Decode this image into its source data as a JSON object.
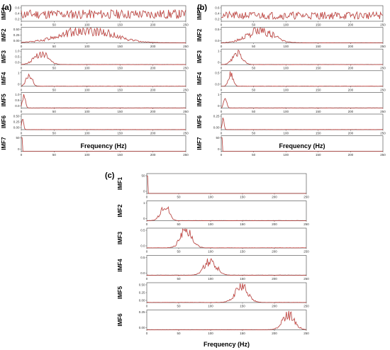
{
  "xlabel": "Frequency (Hz)",
  "colors": {
    "line": "#e3342f",
    "edge": "#262626",
    "axis": "#444444"
  },
  "chart_data": [
    {
      "panel": "(a)",
      "type": "line",
      "xlabel": "Frequency (Hz)",
      "xlim": [
        0,
        250
      ],
      "xticks": [
        "0",
        "50",
        "100",
        "150",
        "200",
        "250"
      ],
      "grid": false,
      "series": [
        {
          "name": "IMF1",
          "yticks": [
            "0.6",
            "0.4",
            "0.2"
          ],
          "ylim": [
            0,
            0.7
          ],
          "shape": "broad",
          "center": 150,
          "width": 200,
          "peak": 0.55,
          "noise": 0.5,
          "seed": 11
        },
        {
          "name": "IMF2",
          "yticks": [
            "0.50",
            "0.25",
            "0.00"
          ],
          "ylim": [
            0,
            0.6
          ],
          "shape": "band",
          "center": 100,
          "width": 55,
          "peak": 0.52,
          "noise": 0.45,
          "seed": 12
        },
        {
          "name": "IMF3",
          "yticks": [
            "1.0",
            "0.5",
            "0.0"
          ],
          "ylim": [
            0,
            1.2
          ],
          "shape": "band",
          "center": 30,
          "width": 14,
          "peak": 0.95,
          "noise": 0.4,
          "seed": 13
        },
        {
          "name": "IMF4",
          "yticks": [
            "1",
            "0"
          ],
          "ylim": [
            0,
            1.4
          ],
          "shape": "band",
          "center": 12,
          "width": 6,
          "peak": 1.1,
          "noise": 0.35,
          "seed": 14
        },
        {
          "name": "IMF5",
          "yticks": [
            "1.0",
            "0.5",
            "0.0"
          ],
          "ylim": [
            0,
            1.2
          ],
          "shape": "band",
          "center": 4,
          "width": 3,
          "peak": 1.0,
          "noise": 0.2,
          "seed": 15
        },
        {
          "name": "IMF6",
          "yticks": [
            "0.50",
            "0.25",
            "0.00"
          ],
          "ylim": [
            0,
            0.6
          ],
          "shape": "band",
          "center": 2,
          "width": 2,
          "peak": 0.5,
          "noise": 0.15,
          "seed": 16
        },
        {
          "name": "IMF7",
          "yticks": [
            "50",
            "0"
          ],
          "ylim": [
            0,
            60
          ],
          "shape": "spike",
          "center": 0,
          "width": 1,
          "peak": 55,
          "noise": 0,
          "seed": 17
        }
      ]
    },
    {
      "panel": "(b)",
      "type": "line",
      "xlabel": "Frequency (Hz)",
      "xlim": [
        0,
        250
      ],
      "xticks": [
        "0",
        "50",
        "100",
        "150",
        "200",
        "250"
      ],
      "grid": false,
      "series": [
        {
          "name": "IMF1",
          "yticks": [
            "0.6",
            "0.4",
            "0.2"
          ],
          "ylim": [
            0,
            0.7
          ],
          "shape": "broad",
          "center": 150,
          "width": 200,
          "peak": 0.45,
          "noise": 0.45,
          "seed": 21
        },
        {
          "name": "IMF2",
          "yticks": [
            "0.5",
            "0.0"
          ],
          "ylim": [
            0,
            0.7
          ],
          "shape": "band",
          "center": 60,
          "width": 28,
          "peak": 0.6,
          "noise": 0.45,
          "seed": 22
        },
        {
          "name": "IMF3",
          "yticks": [
            "1",
            "0"
          ],
          "ylim": [
            0,
            1.3
          ],
          "shape": "band",
          "center": 25,
          "width": 10,
          "peak": 1.0,
          "noise": 0.35,
          "seed": 23
        },
        {
          "name": "IMF4",
          "yticks": [
            "0.5",
            "0.0"
          ],
          "ylim": [
            0,
            0.7
          ],
          "shape": "band",
          "center": 15,
          "width": 5,
          "peak": 0.6,
          "noise": 0.35,
          "seed": 24
        },
        {
          "name": "IMF5",
          "yticks": [
            "1",
            "0"
          ],
          "ylim": [
            0,
            1.3
          ],
          "shape": "band",
          "center": 6,
          "width": 3,
          "peak": 1.0,
          "noise": 0.2,
          "seed": 25
        },
        {
          "name": "IMF6",
          "yticks": [
            "0.25",
            "0.00"
          ],
          "ylim": [
            0,
            0.4
          ],
          "shape": "band",
          "center": 3,
          "width": 2,
          "peak": 0.32,
          "noise": 0.15,
          "seed": 26
        },
        {
          "name": "IMF7",
          "yticks": [
            "50",
            "0"
          ],
          "ylim": [
            0,
            60
          ],
          "shape": "spike",
          "center": 0,
          "width": 1,
          "peak": 55,
          "noise": 0,
          "seed": 27
        }
      ]
    },
    {
      "panel": "(c)",
      "type": "line",
      "xlabel": "Frequency (Hz)",
      "xlim": [
        0,
        250
      ],
      "xticks": [
        "0",
        "50",
        "100",
        "150",
        "200",
        "250"
      ],
      "grid": false,
      "series": [
        {
          "name": "IMF1",
          "yticks": [
            "50",
            "0"
          ],
          "ylim": [
            0,
            60
          ],
          "shape": "spike",
          "center": 0,
          "width": 1,
          "peak": 55,
          "noise": 0,
          "seed": 31
        },
        {
          "name": "IMF2",
          "yticks": [
            "1",
            "0"
          ],
          "ylim": [
            0,
            1.2
          ],
          "shape": "band",
          "center": 28,
          "width": 9,
          "peak": 1.0,
          "noise": 0.35,
          "seed": 32
        },
        {
          "name": "IMF3",
          "yticks": [
            "0.5",
            "0.0"
          ],
          "ylim": [
            0,
            0.7
          ],
          "shape": "band",
          "center": 62,
          "width": 13,
          "peak": 0.6,
          "noise": 0.4,
          "seed": 33
        },
        {
          "name": "IMF4",
          "yticks": [
            "0.5",
            "0.0"
          ],
          "ylim": [
            0,
            0.75
          ],
          "shape": "band",
          "center": 100,
          "width": 13,
          "peak": 0.6,
          "noise": 0.4,
          "seed": 34
        },
        {
          "name": "IMF5",
          "yticks": [
            "0.50",
            "0.25",
            "0.00"
          ],
          "ylim": [
            0,
            0.6
          ],
          "shape": "band",
          "center": 148,
          "width": 14,
          "peak": 0.48,
          "noise": 0.4,
          "seed": 35
        },
        {
          "name": "IMF6",
          "yticks": [
            "0.25",
            "0.00"
          ],
          "ylim": [
            0,
            0.4
          ],
          "shape": "band",
          "center": 222,
          "width": 13,
          "peak": 0.3,
          "noise": 0.4,
          "seed": 36
        }
      ]
    }
  ]
}
